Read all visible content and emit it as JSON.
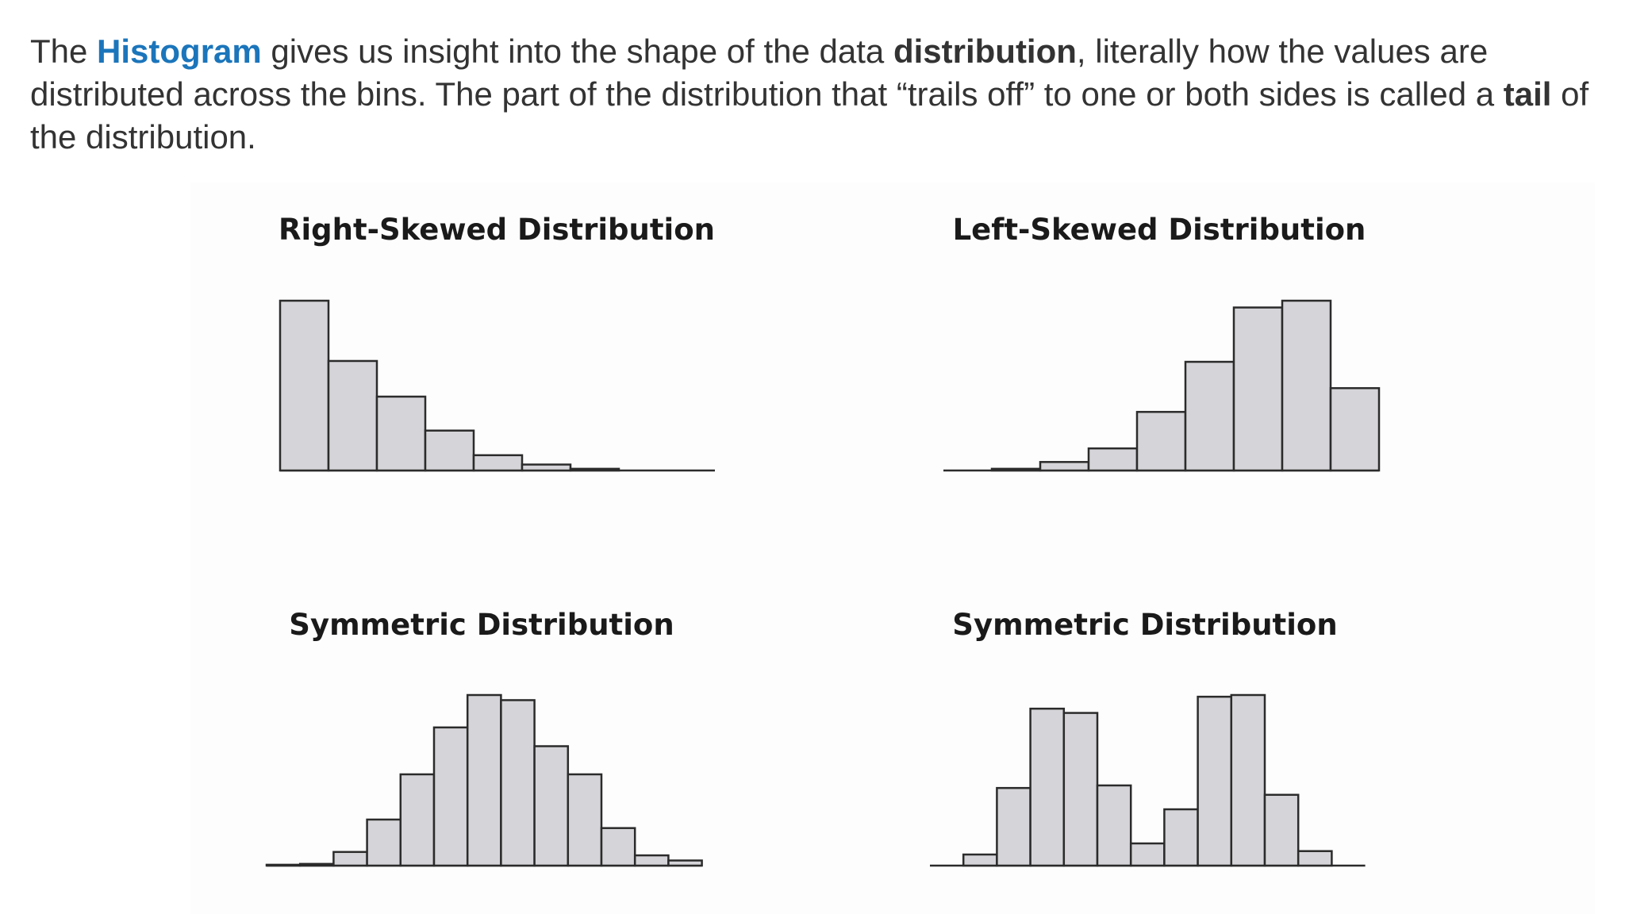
{
  "intro": {
    "p1": "The ",
    "histogram": "Histogram",
    "p2": " gives us insight into the shape of the data ",
    "distribution": "distribution",
    "p3": ", literally how the values are distributed across the bins. The part of the distribution that “trails off” to one or both sides is called a ",
    "tail": "tail",
    "p4": " of the distribution."
  },
  "colors": {
    "highlight": "#1b75bb",
    "text": "#333333",
    "bar_fill": "#d5d4d8",
    "bar_stroke": "#2b2b2b"
  },
  "chart_data": [
    {
      "type": "bar",
      "title": "Right-Skewed Distribution",
      "xlabel": "",
      "ylabel": "",
      "values": [
        100,
        64.5,
        43.5,
        23.5,
        9,
        3.5,
        1,
        0,
        0
      ],
      "ylim": [
        0,
        100
      ],
      "grid": false
    },
    {
      "type": "bar",
      "title": "Left-Skewed Distribution",
      "xlabel": "",
      "ylabel": "",
      "values": [
        0,
        1,
        5,
        13,
        34.5,
        64,
        96,
        100,
        48.5
      ],
      "ylim": [
        0,
        100
      ],
      "grid": false
    },
    {
      "type": "bar",
      "title": "Symmetric Distribution",
      "xlabel": "",
      "ylabel": "",
      "values": [
        0.5,
        1,
        8,
        27,
        53.5,
        81,
        100,
        97,
        70,
        53.5,
        22,
        6,
        3
      ],
      "ylim": [
        0,
        100
      ],
      "grid": false
    },
    {
      "type": "bar",
      "title": "Symmetric Distribution",
      "xlabel": "",
      "ylabel": "",
      "values": [
        0,
        6.5,
        45.5,
        92,
        89.5,
        47,
        13,
        33,
        99,
        100,
        41.5,
        8.5,
        0
      ],
      "ylim": [
        0,
        100
      ],
      "grid": false
    }
  ]
}
